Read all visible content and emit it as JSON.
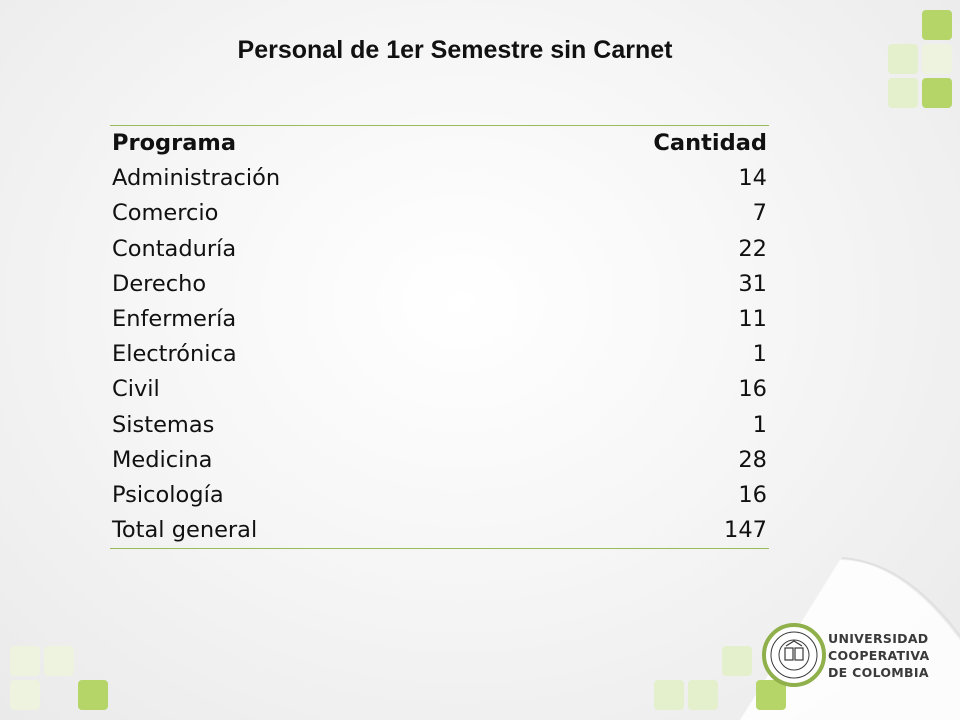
{
  "title": "Personal de 1er Semestre sin Carnet",
  "table": {
    "headers": [
      "Programa",
      "Cantidad"
    ],
    "rows": [
      {
        "programa": "Administración",
        "cantidad": "14"
      },
      {
        "programa": "Comercio",
        "cantidad": "7"
      },
      {
        "programa": "Contaduría",
        "cantidad": "22"
      },
      {
        "programa": "Derecho",
        "cantidad": "31"
      },
      {
        "programa": "Enfermería",
        "cantidad": "11"
      },
      {
        "programa": "Electrónica",
        "cantidad": "1"
      },
      {
        "programa": "Civil",
        "cantidad": "16"
      },
      {
        "programa": "Sistemas",
        "cantidad": "1"
      },
      {
        "programa": "Medicina",
        "cantidad": "28"
      },
      {
        "programa": "Psicología",
        "cantidad": "16"
      },
      {
        "programa": "Total general",
        "cantidad": "147"
      }
    ]
  },
  "logo": {
    "line1": "UNIVERSIDAD",
    "line2": "COOPERATIVA",
    "line3": "DE COLOMBIA"
  },
  "colors": {
    "accent_green": "#9bbb59",
    "square_green": "#b5d569",
    "square_light": "#e4efcc"
  }
}
